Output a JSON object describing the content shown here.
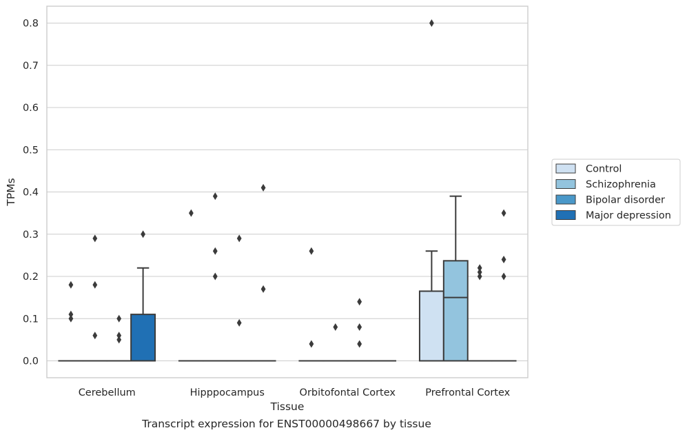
{
  "caption": "Transcript expression for ENST00000498667 by tissue",
  "chart_data": {
    "type": "box",
    "xlabel": "Tissue",
    "ylabel": "TPMs",
    "ylim": [
      -0.04,
      0.84
    ],
    "yticks": [
      "0.0",
      "0.1",
      "0.2",
      "0.3",
      "0.4",
      "0.5",
      "0.6",
      "0.7",
      "0.8"
    ],
    "grid": "horizontal",
    "legend_position": "center-right",
    "categories": [
      "Cerebellum",
      "Hipppocampus",
      "Orbitofontal Cortex",
      "Prefrontal Cortex"
    ],
    "series": [
      {
        "name": "Control",
        "color": "#cfe1f2",
        "boxes": [
          {
            "q1": 0,
            "median": 0,
            "q3": 0,
            "whisker_low": 0,
            "whisker_high": 0,
            "outliers": [
              0.18,
              0.11,
              0.1
            ]
          },
          {
            "q1": 0,
            "median": 0,
            "q3": 0,
            "whisker_low": 0,
            "whisker_high": 0,
            "outliers": [
              0.35
            ]
          },
          {
            "q1": 0,
            "median": 0,
            "q3": 0,
            "whisker_low": 0,
            "whisker_high": 0,
            "outliers": [
              0.26,
              0.04
            ]
          },
          {
            "q1": 0,
            "median": 0,
            "q3": 0.165,
            "whisker_low": 0,
            "whisker_high": 0.26,
            "outliers": [
              0.8
            ]
          }
        ]
      },
      {
        "name": "Schizophrenia",
        "color": "#93c4de",
        "boxes": [
          {
            "q1": 0,
            "median": 0,
            "q3": 0,
            "whisker_low": 0,
            "whisker_high": 0,
            "outliers": [
              0.29,
              0.18,
              0.06
            ]
          },
          {
            "q1": 0,
            "median": 0,
            "q3": 0,
            "whisker_low": 0,
            "whisker_high": 0,
            "outliers": [
              0.39,
              0.26,
              0.2
            ]
          },
          {
            "q1": 0,
            "median": 0,
            "q3": 0,
            "whisker_low": 0,
            "whisker_high": 0,
            "outliers": [
              0.08
            ]
          },
          {
            "q1": 0,
            "median": 0.15,
            "q3": 0.237,
            "whisker_low": 0,
            "whisker_high": 0.39,
            "outliers": []
          }
        ]
      },
      {
        "name": "Bipolar disorder",
        "color": "#4a98c9",
        "boxes": [
          {
            "q1": 0,
            "median": 0,
            "q3": 0,
            "whisker_low": 0,
            "whisker_high": 0,
            "outliers": [
              0.1,
              0.06,
              0.05
            ]
          },
          {
            "q1": 0,
            "median": 0,
            "q3": 0,
            "whisker_low": 0,
            "whisker_high": 0,
            "outliers": [
              0.29,
              0.09
            ]
          },
          {
            "q1": 0,
            "median": 0,
            "q3": 0,
            "whisker_low": 0,
            "whisker_high": 0,
            "outliers": [
              0.14,
              0.08,
              0.04
            ]
          },
          {
            "q1": 0,
            "median": 0,
            "q3": 0,
            "whisker_low": 0,
            "whisker_high": 0,
            "outliers": [
              0.22,
              0.21,
              0.2
            ]
          }
        ]
      },
      {
        "name": "Major depression",
        "color": "#2070b4",
        "boxes": [
          {
            "q1": 0,
            "median": 0,
            "q3": 0.11,
            "whisker_low": 0,
            "whisker_high": 0.22,
            "outliers": [
              0.3
            ]
          },
          {
            "q1": 0,
            "median": 0,
            "q3": 0,
            "whisker_low": 0,
            "whisker_high": 0,
            "outliers": [
              0.41,
              0.17
            ]
          },
          {
            "q1": 0,
            "median": 0,
            "q3": 0,
            "whisker_low": 0,
            "whisker_high": 0,
            "outliers": []
          },
          {
            "q1": 0,
            "median": 0,
            "q3": 0,
            "whisker_low": 0,
            "whisker_high": 0,
            "outliers": [
              0.35,
              0.24,
              0.2
            ]
          }
        ]
      }
    ]
  }
}
